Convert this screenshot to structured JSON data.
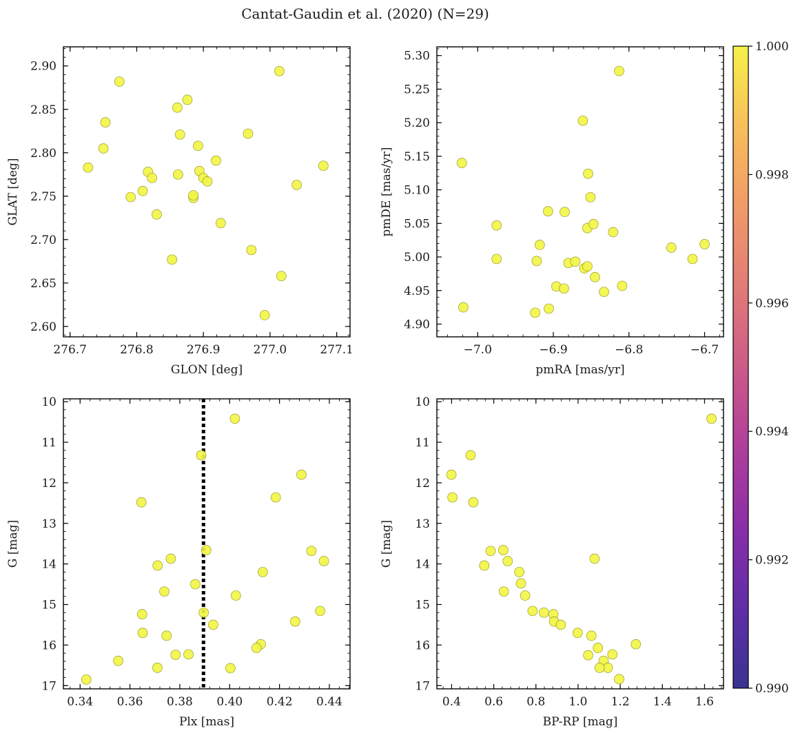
{
  "title": "Cantat-Gaudin et al. (2020) (N=29)",
  "point_color": "#f2f542",
  "point_edge": "#9a9a30",
  "colorbar": {
    "ticks": [
      "1.000",
      "0.998",
      "0.996",
      "0.994",
      "0.992",
      "0.990"
    ],
    "range": [
      0.99,
      1.0
    ],
    "colormap": "plasma"
  },
  "chart_data": [
    {
      "type": "scatter",
      "xlabel": "GLON [deg]",
      "ylabel": "GLAT [deg]",
      "xlim": [
        276.69,
        277.12
      ],
      "ylim": [
        2.588,
        2.922
      ],
      "xticks": [
        276.7,
        276.8,
        276.9,
        277.0,
        277.1
      ],
      "xtick_labels": [
        "276.7",
        "276.8",
        "276.9",
        "277.0",
        "277.1"
      ],
      "yticks": [
        2.6,
        2.65,
        2.7,
        2.75,
        2.8,
        2.85,
        2.9
      ],
      "ytick_labels": [
        "2.60",
        "2.65",
        "2.70",
        "2.75",
        "2.80",
        "2.85",
        "2.90"
      ],
      "inverted_y": false,
      "points": [
        [
          276.774,
          2.882
        ],
        [
          276.753,
          2.835
        ],
        [
          276.75,
          2.805
        ],
        [
          276.727,
          2.783
        ],
        [
          276.791,
          2.749
        ],
        [
          276.809,
          2.756
        ],
        [
          276.817,
          2.778
        ],
        [
          276.823,
          2.771
        ],
        [
          276.83,
          2.729
        ],
        [
          276.853,
          2.677
        ],
        [
          276.861,
          2.852
        ],
        [
          276.876,
          2.861
        ],
        [
          276.865,
          2.821
        ],
        [
          276.862,
          2.775
        ],
        [
          276.885,
          2.748
        ],
        [
          276.885,
          2.751
        ],
        [
          276.892,
          2.808
        ],
        [
          276.894,
          2.779
        ],
        [
          276.9,
          2.771
        ],
        [
          276.906,
          2.767
        ],
        [
          276.919,
          2.791
        ],
        [
          276.926,
          2.719
        ],
        [
          276.967,
          2.822
        ],
        [
          276.972,
          2.688
        ],
        [
          277.014,
          2.894
        ],
        [
          277.017,
          2.658
        ],
        [
          276.992,
          2.613
        ],
        [
          277.04,
          2.763
        ],
        [
          277.08,
          2.785
        ]
      ]
    },
    {
      "type": "scatter",
      "xlabel": "pmRA [mas/yr]",
      "ylabel": "pmDE [mas/yr]",
      "xlim": [
        -7.054,
        -6.675
      ],
      "ylim": [
        4.881,
        5.313
      ],
      "xticks": [
        -7.0,
        -6.9,
        -6.8,
        -6.7
      ],
      "xtick_labels": [
        "−7.0",
        "−6.9",
        "−6.8",
        "−6.7"
      ],
      "yticks": [
        4.9,
        4.95,
        5.0,
        5.05,
        5.1,
        5.15,
        5.2,
        5.25,
        5.3
      ],
      "ytick_labels": [
        "4.90",
        "4.95",
        "5.00",
        "5.05",
        "5.10",
        "5.15",
        "5.20",
        "5.25",
        "5.30"
      ],
      "inverted_y": false,
      "points": [
        [
          -7.021,
          5.14
        ],
        [
          -7.019,
          4.925
        ],
        [
          -6.975,
          5.047
        ],
        [
          -6.975,
          4.997
        ],
        [
          -6.924,
          4.917
        ],
        [
          -6.922,
          4.994
        ],
        [
          -6.918,
          5.018
        ],
        [
          -6.907,
          5.068
        ],
        [
          -6.906,
          4.923
        ],
        [
          -6.896,
          4.956
        ],
        [
          -6.886,
          4.953
        ],
        [
          -6.885,
          5.067
        ],
        [
          -6.88,
          4.991
        ],
        [
          -6.871,
          4.993
        ],
        [
          -6.861,
          5.203
        ],
        [
          -6.859,
          4.983
        ],
        [
          -6.855,
          4.986
        ],
        [
          -6.855,
          5.043
        ],
        [
          -6.854,
          5.124
        ],
        [
          -6.851,
          5.089
        ],
        [
          -6.847,
          5.049
        ],
        [
          -6.845,
          4.97
        ],
        [
          -6.833,
          4.948
        ],
        [
          -6.821,
          5.037
        ],
        [
          -6.813,
          5.277
        ],
        [
          -6.809,
          4.957
        ],
        [
          -6.744,
          5.014
        ],
        [
          -6.716,
          4.997
        ],
        [
          -6.7,
          5.019
        ]
      ]
    },
    {
      "type": "scatter",
      "xlabel": "Plx [mas]",
      "ylabel": "G [mag]",
      "xlim": [
        0.3333,
        0.4483
      ],
      "ylim": [
        17.08,
        9.93
      ],
      "xticks": [
        0.34,
        0.36,
        0.38,
        0.4,
        0.42,
        0.44
      ],
      "xtick_labels": [
        "0.34",
        "0.36",
        "0.38",
        "0.40",
        "0.42",
        "0.44"
      ],
      "yticks": [
        10,
        11,
        12,
        13,
        14,
        15,
        16,
        17
      ],
      "ytick_labels": [
        "10",
        "11",
        "12",
        "13",
        "14",
        "15",
        "16",
        "17"
      ],
      "inverted_y": true,
      "vline": 0.3895,
      "points": [
        [
          0.4021,
          10.42
        ],
        [
          0.3886,
          11.32
        ],
        [
          0.4288,
          11.8
        ],
        [
          0.4185,
          12.36
        ],
        [
          0.3646,
          12.48
        ],
        [
          0.3906,
          13.66
        ],
        [
          0.4328,
          13.68
        ],
        [
          0.4378,
          13.93
        ],
        [
          0.3764,
          13.87
        ],
        [
          0.3711,
          14.04
        ],
        [
          0.4133,
          14.2
        ],
        [
          0.3862,
          14.5
        ],
        [
          0.3738,
          14.68
        ],
        [
          0.4025,
          14.78
        ],
        [
          0.3649,
          15.24
        ],
        [
          0.3896,
          15.2
        ],
        [
          0.4363,
          15.16
        ],
        [
          0.4263,
          15.42
        ],
        [
          0.3934,
          15.5
        ],
        [
          0.3651,
          15.7
        ],
        [
          0.3747,
          15.77
        ],
        [
          0.4125,
          15.98
        ],
        [
          0.4108,
          16.07
        ],
        [
          0.3835,
          16.23
        ],
        [
          0.3783,
          16.24
        ],
        [
          0.3553,
          16.39
        ],
        [
          0.371,
          16.56
        ],
        [
          0.4003,
          16.57
        ],
        [
          0.3425,
          16.85
        ]
      ]
    },
    {
      "type": "scatter",
      "xlabel": "BP-RP [mag]",
      "ylabel": "G [mag]",
      "xlim": [
        0.33,
        1.69
      ],
      "ylim": [
        17.08,
        9.93
      ],
      "xticks": [
        0.4,
        0.6,
        0.8,
        1.0,
        1.2,
        1.4,
        1.6
      ],
      "xtick_labels": [
        "0.4",
        "0.6",
        "0.8",
        "1.0",
        "1.2",
        "1.4",
        "1.6"
      ],
      "yticks": [
        10,
        11,
        12,
        13,
        14,
        15,
        16,
        17
      ],
      "ytick_labels": [
        "10",
        "11",
        "12",
        "13",
        "14",
        "15",
        "16",
        "17"
      ],
      "inverted_y": true,
      "points": [
        [
          1.633,
          10.42
        ],
        [
          0.49,
          11.32
        ],
        [
          0.399,
          11.8
        ],
        [
          0.404,
          12.36
        ],
        [
          0.503,
          12.48
        ],
        [
          0.585,
          13.68
        ],
        [
          0.645,
          13.66
        ],
        [
          0.666,
          13.93
        ],
        [
          0.555,
          14.04
        ],
        [
          0.721,
          14.2
        ],
        [
          0.729,
          14.48
        ],
        [
          0.648,
          14.68
        ],
        [
          0.749,
          14.78
        ],
        [
          1.078,
          13.87
        ],
        [
          0.784,
          15.16
        ],
        [
          0.838,
          15.2
        ],
        [
          0.883,
          15.24
        ],
        [
          0.886,
          15.42
        ],
        [
          0.918,
          15.5
        ],
        [
          0.998,
          15.7
        ],
        [
          1.063,
          15.77
        ],
        [
          1.274,
          15.98
        ],
        [
          1.094,
          16.07
        ],
        [
          1.048,
          16.25
        ],
        [
          1.163,
          16.23
        ],
        [
          1.121,
          16.39
        ],
        [
          1.141,
          16.56
        ],
        [
          1.102,
          16.56
        ],
        [
          1.195,
          16.84
        ]
      ]
    }
  ]
}
